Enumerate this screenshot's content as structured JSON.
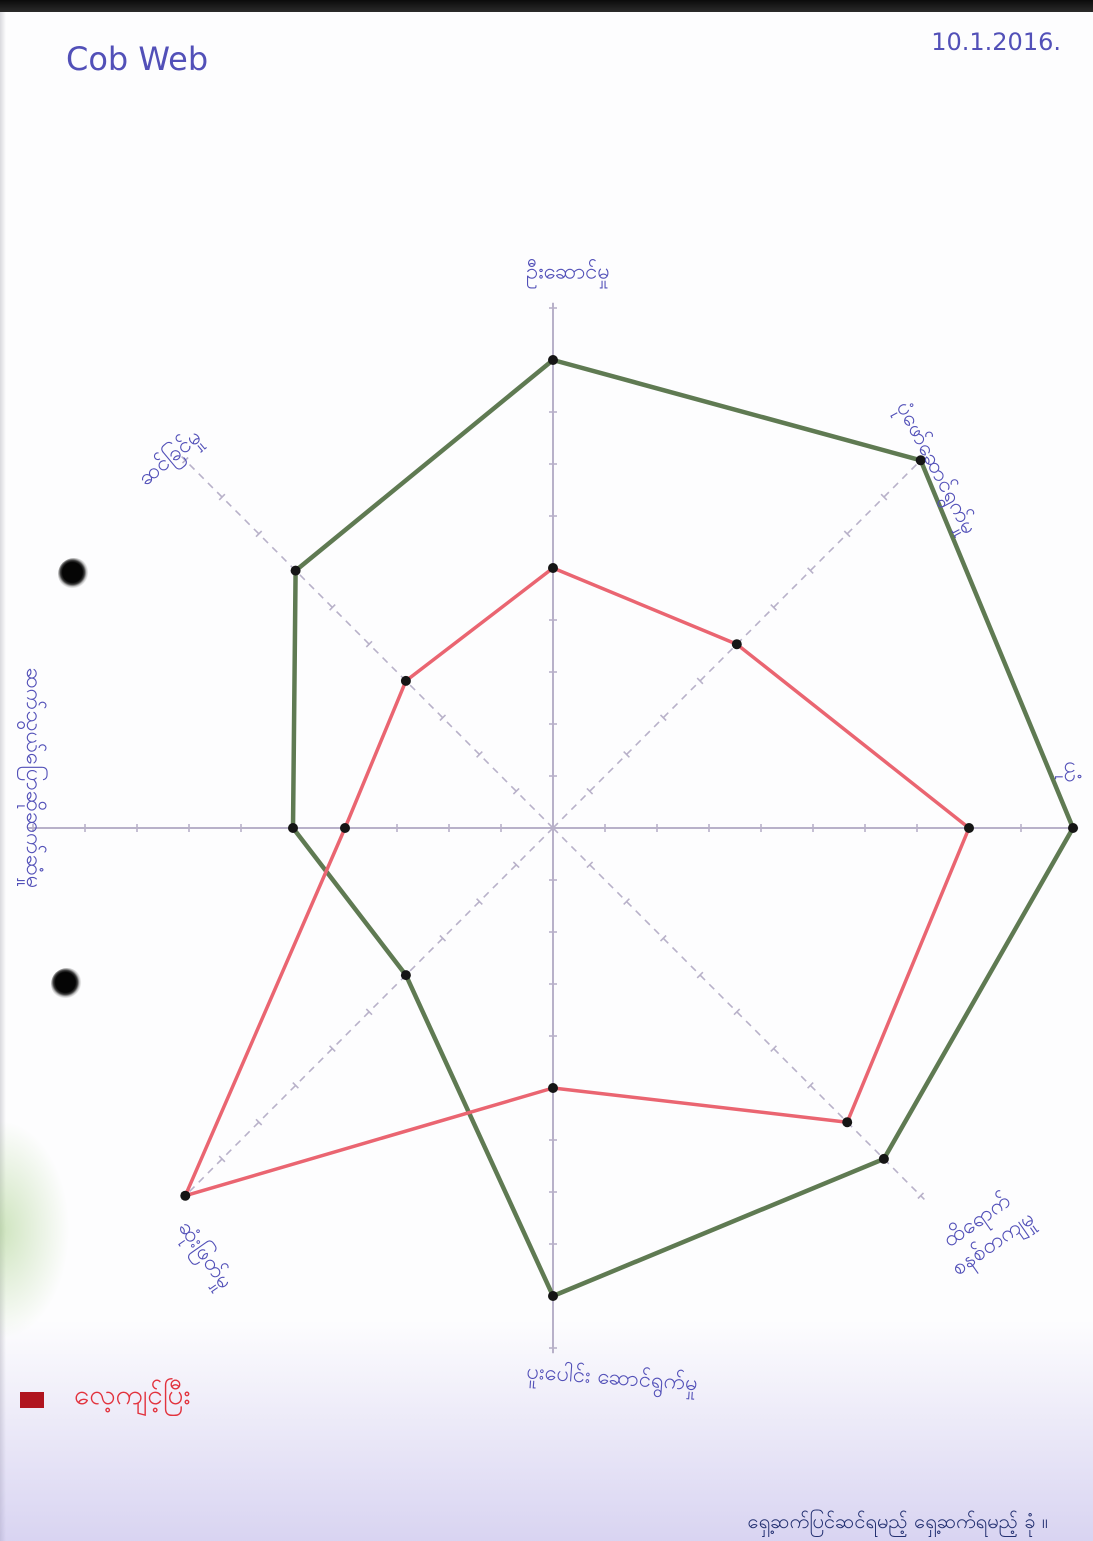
{
  "page": {
    "date": "10.1.2016.",
    "note": "ရှေ့ဆက်ပြင်ဆင်ရမည့် ရှေ့ဆက်ရမည့် ခုံ ။"
  },
  "colors": {
    "ink": "#5250b8",
    "axis": "#b8b1c9",
    "legend_swatch": "#b0151f",
    "legend_text": "#e2323d",
    "note_ink": "#243172"
  },
  "chart_data": {
    "type": "line",
    "polar": true,
    "title": "Cob Web",
    "categories": [
      "ဦးဆောင်မှု",
      "ပုံဖော်ဆောင်ရွက်မှု",
      "ယုံ",
      "ထိရောက်\nစနစ်တကျမှု",
      "ပူးပေါင်း ဆောင်ရွက်မှု",
      "ဆုံးဖြတ်မှု",
      "ဆက်သွယ်ပြောဆိုဆက်ဆံမှု",
      "ဆင်ခြင်မှု"
    ],
    "series": [
      {
        "name": "လေ့ကျင့်ပြီး",
        "values": [
          5,
          5,
          8,
          8,
          5,
          10,
          4,
          4
        ],
        "color": "#ea6571"
      },
      {
        "values": [
          9,
          10,
          10,
          9,
          9,
          4,
          5,
          7
        ],
        "color": "#5f7a52"
      }
    ],
    "rlim": [
      0,
      10
    ],
    "tick_step": 1,
    "grid": false,
    "legend": "bottom-left"
  }
}
